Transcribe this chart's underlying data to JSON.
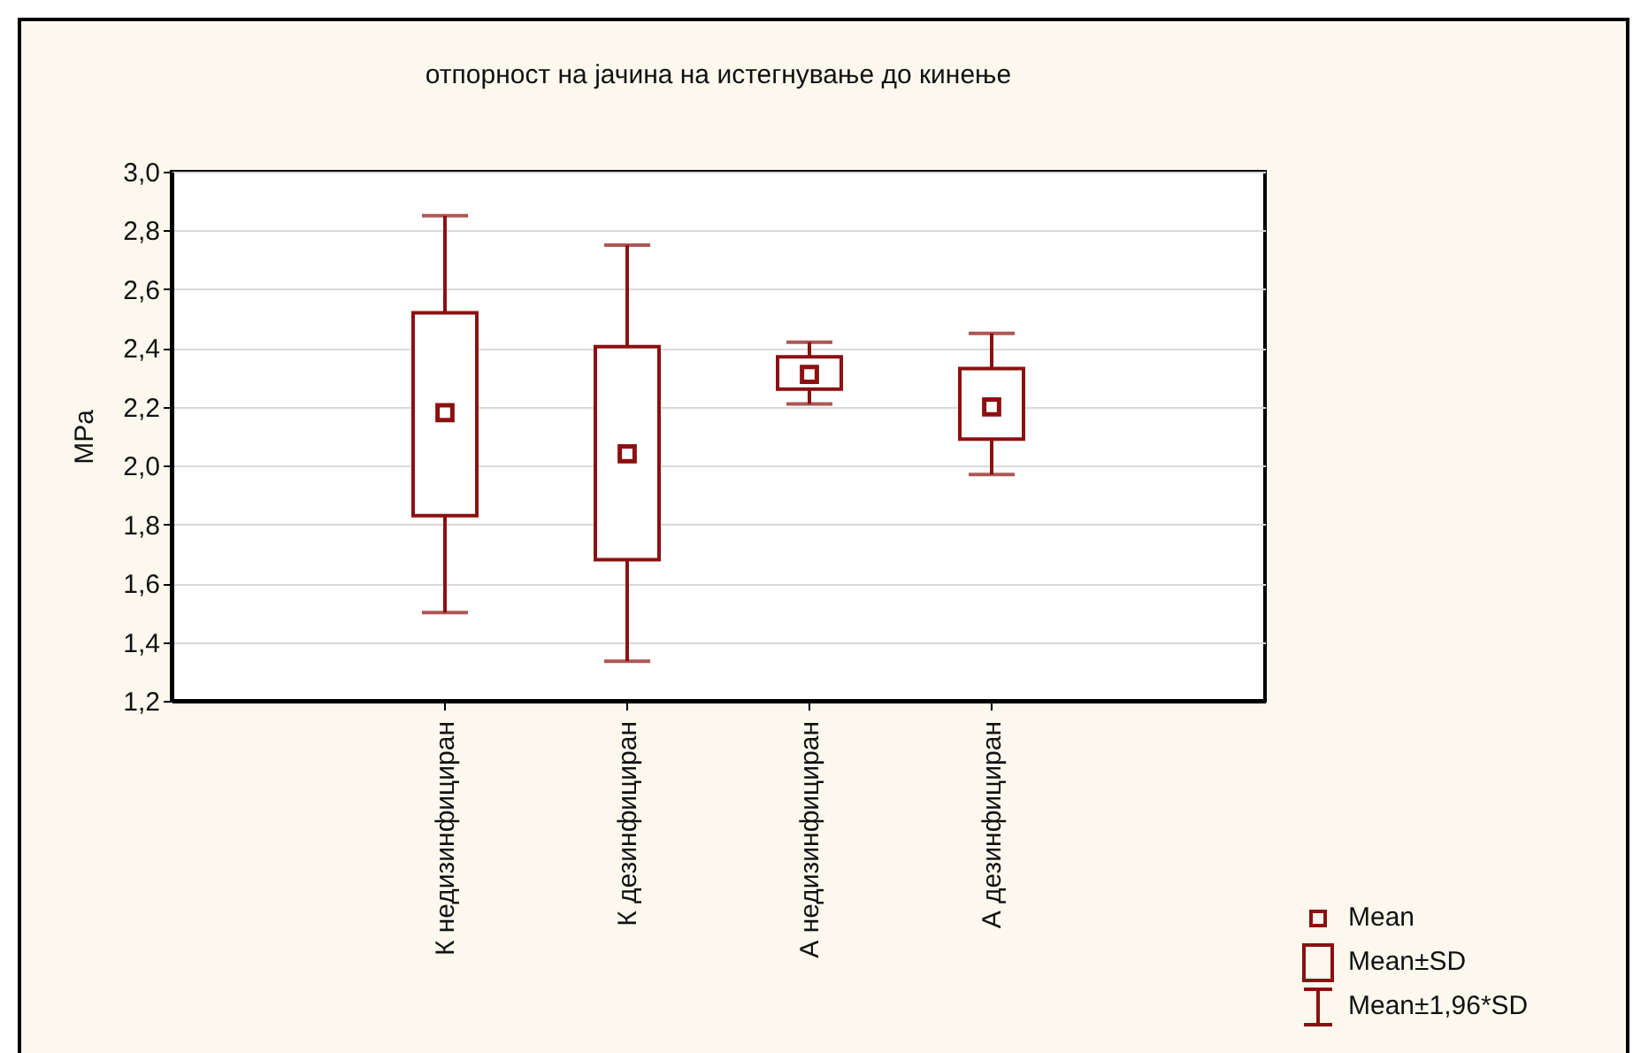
{
  "chart_data": {
    "type": "box",
    "title": "отпорност на јачина на истегнување до кинење",
    "ylabel": "MPa",
    "categories": [
      "К недизинфициран",
      "К дезинфициран",
      "А недизинфициран",
      "А дезинфициран"
    ],
    "boxes": [
      {
        "low": 1.5,
        "q1": 1.83,
        "q3": 2.52,
        "high": 2.85,
        "mean": 2.18
      },
      {
        "low": 1.335,
        "q1": 1.68,
        "q3": 2.405,
        "high": 2.75,
        "mean": 2.04
      },
      {
        "low": 2.21,
        "q1": 2.26,
        "q3": 2.37,
        "high": 2.42,
        "mean": 2.31
      },
      {
        "low": 1.97,
        "q1": 2.09,
        "q3": 2.33,
        "high": 2.45,
        "mean": 2.2
      }
    ],
    "color": "#8b1010",
    "ylim": [
      1.2,
      3.0
    ],
    "yticks": [
      {
        "value": 1.2,
        "label": "1,2"
      },
      {
        "value": 1.4,
        "label": "1,4"
      },
      {
        "value": 1.6,
        "label": "1,6"
      },
      {
        "value": 1.8,
        "label": "1,8"
      },
      {
        "value": 2.0,
        "label": "2,0"
      },
      {
        "value": 2.2,
        "label": "2,2"
      },
      {
        "value": 2.4,
        "label": "2,4"
      },
      {
        "value": 2.6,
        "label": "2,6"
      },
      {
        "value": 2.8,
        "label": "2,8"
      },
      {
        "value": 3.0,
        "label": "3,0"
      }
    ],
    "grid": "y",
    "annotations": [
      "Mean",
      "Mean±SD",
      "Mean±1,96*SD"
    ]
  }
}
